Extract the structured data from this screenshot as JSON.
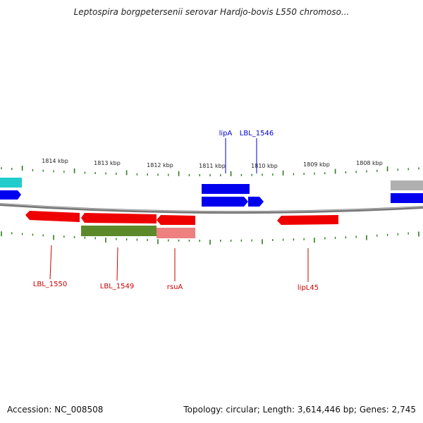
{
  "title": "Leptospira borgpetersenii serovar Hardjo-bovis L550 chromoso...",
  "footer": {
    "accession": "Accession: NC_008508",
    "summary": "Topology: circular; Length: 3,614,446 bp; Genes: 2,745"
  },
  "colors": {
    "background": "#ffffff",
    "backbone": "#777777",
    "tick": "#2e7d1e",
    "forward_gene": "#0000ee",
    "reverse_gene": "#ee0000",
    "feature_olive": "#5c8a2a",
    "feature_pink": "#ee8080",
    "feature_cyan": "#22cccc",
    "feature_gray": "#b0b0b0",
    "label_blue": "#0000cc",
    "label_red": "#cc0000"
  },
  "scale_labels": [
    "1814 kbp",
    "1813 kbp",
    "1812 kbp",
    "1811 kbp",
    "1810 kbp",
    "1809 kbp",
    "1808 kbp"
  ],
  "gene_labels_top": [
    "lipA",
    "LBL_1546"
  ],
  "gene_labels_bottom": [
    "LBL_1550",
    "LBL_1549",
    "rsuA",
    "lipL45"
  ]
}
